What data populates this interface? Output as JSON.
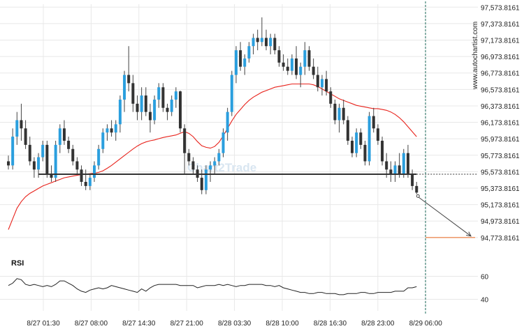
{
  "site_label": "www.autochartist.com",
  "watermark": "Chart2Trade",
  "colors": {
    "bull": "#2b9fde",
    "bear": "#333333",
    "ma": "#e8231c",
    "support": "#333333",
    "target": "#e8641c",
    "rsi": "#222222",
    "grid": "#e8e8e8",
    "wick": "#444444"
  },
  "chart_data": [
    {
      "type": "candlestick",
      "title": "",
      "y_ticks": [
        "97,573.8161",
        "97,373.8161",
        "97,173.8161",
        "96,973.8161",
        "96,773.8161",
        "96,573.8161",
        "96,373.8161",
        "96,173.8161",
        "95,973.8161",
        "95,773.8161",
        "95,573.8161",
        "95,373.8161",
        "95,173.8161",
        "94,973.8161",
        "94,773.8161"
      ],
      "x_ticks": [
        "8/27 01:30",
        "8/27 08:00",
        "8/27 14:30",
        "8/27 21:00",
        "8/28 03:30",
        "8/28 10:00",
        "8/28 16:30",
        "8/28 23:00",
        "8/29 06:00"
      ],
      "ylim": [
        94730,
        97610
      ],
      "candles": [
        [
          95700,
          95770,
          95600,
          95650
        ],
        [
          95650,
          96100,
          95600,
          96000
        ],
        [
          96000,
          96300,
          95900,
          96200
        ],
        [
          96200,
          96400,
          95950,
          96100
        ],
        [
          96100,
          96200,
          95850,
          95900
        ],
        [
          95900,
          96000,
          95650,
          95700
        ],
        [
          95700,
          95750,
          95500,
          95600
        ],
        [
          95600,
          95800,
          95500,
          95750
        ],
        [
          95750,
          95950,
          95700,
          95900
        ],
        [
          95900,
          95950,
          95500,
          95550
        ],
        [
          95550,
          95650,
          95450,
          95500
        ],
        [
          95500,
          95950,
          95450,
          95900
        ],
        [
          95900,
          96150,
          95800,
          96100
        ],
        [
          96100,
          96200,
          95900,
          95950
        ],
        [
          95950,
          96000,
          95800,
          95850
        ],
        [
          95850,
          95900,
          95650,
          95700
        ],
        [
          95700,
          95750,
          95550,
          95600
        ],
        [
          95600,
          95650,
          95400,
          95450
        ],
        [
          95450,
          95600,
          95350,
          95400
        ],
        [
          95400,
          95550,
          95350,
          95500
        ],
        [
          95500,
          95700,
          95450,
          95650
        ],
        [
          95650,
          95900,
          95600,
          95850
        ],
        [
          95850,
          96100,
          95800,
          96050
        ],
        [
          96050,
          96150,
          95950,
          96100
        ],
        [
          96100,
          96200,
          96000,
          96050
        ],
        [
          96050,
          96200,
          95950,
          96150
        ],
        [
          96150,
          96500,
          96050,
          96450
        ],
        [
          96450,
          96800,
          96300,
          96750
        ],
        [
          96750,
          97100,
          96550,
          96650
        ],
        [
          96650,
          96750,
          96300,
          96400
        ],
        [
          96400,
          96500,
          96200,
          96300
        ],
        [
          96300,
          96600,
          96200,
          96500
        ],
        [
          96500,
          96600,
          96250,
          96300
        ],
        [
          96300,
          96400,
          96050,
          96200
        ],
        [
          96200,
          96500,
          96150,
          96450
        ],
        [
          96450,
          96650,
          96350,
          96600
        ],
        [
          96600,
          96650,
          96300,
          96350
        ],
        [
          96350,
          96400,
          96200,
          96300
        ],
        [
          96300,
          96500,
          96250,
          96450
        ],
        [
          96450,
          96600,
          96350,
          96550
        ],
        [
          96550,
          96560,
          96050,
          96100
        ],
        [
          96100,
          96150,
          95550,
          95800
        ],
        [
          95800,
          95850,
          95650,
          95700
        ],
        [
          95700,
          95750,
          95550,
          95600
        ],
        [
          95600,
          95650,
          95450,
          95500
        ],
        [
          95500,
          95600,
          95300,
          95350
        ],
        [
          95350,
          95650,
          95300,
          95600
        ],
        [
          95600,
          95700,
          95450,
          95650
        ],
        [
          95650,
          95750,
          95550,
          95700
        ],
        [
          95700,
          95850,
          95650,
          95800
        ],
        [
          95800,
          96100,
          95750,
          96050
        ],
        [
          96050,
          96350,
          95950,
          96300
        ],
        [
          96300,
          96800,
          96250,
          96750
        ],
        [
          96750,
          97100,
          96650,
          97050
        ],
        [
          97050,
          97150,
          96800,
          96850
        ],
        [
          96850,
          97000,
          96750,
          96950
        ],
        [
          96950,
          97150,
          96900,
          97100
        ],
        [
          97100,
          97250,
          97000,
          97200
        ],
        [
          97200,
          97300,
          97050,
          97150
        ],
        [
          97150,
          97450,
          97100,
          97200
        ],
        [
          97200,
          97300,
          97050,
          97100
        ],
        [
          97100,
          97250,
          97000,
          97200
        ],
        [
          97200,
          97250,
          97000,
          97050
        ],
        [
          97050,
          97100,
          96850,
          96900
        ],
        [
          96900,
          97000,
          96800,
          96850
        ],
        [
          96850,
          96950,
          96750,
          96800
        ],
        [
          96800,
          97000,
          96750,
          96950
        ],
        [
          96950,
          97100,
          96700,
          96750
        ],
        [
          96750,
          96900,
          96600,
          96850
        ],
        [
          96850,
          97150,
          96750,
          97050
        ],
        [
          97050,
          97100,
          96800,
          96850
        ],
        [
          96850,
          96950,
          96700,
          96750
        ],
        [
          96750,
          96850,
          96550,
          96600
        ],
        [
          96600,
          96750,
          96500,
          96700
        ],
        [
          96700,
          96800,
          96500,
          96550
        ],
        [
          96550,
          96600,
          96350,
          96400
        ],
        [
          96400,
          96450,
          96150,
          96200
        ],
        [
          96200,
          96400,
          96050,
          96350
        ],
        [
          96350,
          96450,
          96150,
          96200
        ],
        [
          96200,
          96250,
          95900,
          95950
        ],
        [
          95950,
          96000,
          95750,
          95800
        ],
        [
          95800,
          96100,
          95750,
          96050
        ],
        [
          96050,
          96100,
          95850,
          95900
        ],
        [
          95900,
          95950,
          95650,
          95700
        ],
        [
          95700,
          96300,
          95650,
          96250
        ],
        [
          96250,
          96350,
          96050,
          96100
        ],
        [
          96100,
          96150,
          95900,
          95950
        ],
        [
          95950,
          96000,
          95650,
          95700
        ],
        [
          95700,
          95800,
          95500,
          95600
        ],
        [
          95600,
          95700,
          95450,
          95550
        ],
        [
          95550,
          95700,
          95450,
          95650
        ],
        [
          95650,
          95800,
          95500,
          95550
        ],
        [
          95550,
          95850,
          95500,
          95800
        ],
        [
          95800,
          95900,
          95500,
          95550
        ],
        [
          95550,
          95600,
          95350,
          95400
        ],
        [
          95400,
          95450,
          95300,
          95320
        ]
      ],
      "moving_average": [
        94870,
        95000,
        95130,
        95210,
        95270,
        95310,
        95340,
        95370,
        95400,
        95420,
        95440,
        95460,
        95480,
        95500,
        95510,
        95520,
        95530,
        95540,
        95545,
        95550,
        95555,
        95565,
        95585,
        95615,
        95650,
        95690,
        95730,
        95770,
        95810,
        95850,
        95885,
        95915,
        95935,
        95950,
        95960,
        95975,
        95990,
        96000,
        96010,
        96020,
        96040,
        96060,
        96040,
        96000,
        95940,
        95890,
        95870,
        95860,
        95880,
        95930,
        96010,
        96100,
        96190,
        96270,
        96330,
        96390,
        96440,
        96480,
        96510,
        96540,
        96560,
        96580,
        96600,
        96610,
        96620,
        96630,
        96640,
        96640,
        96640,
        96640,
        96640,
        96630,
        96610,
        96580,
        96550,
        96520,
        96490,
        96460,
        96440,
        96420,
        96400,
        96380,
        96370,
        96360,
        96350,
        96340,
        96340,
        96330,
        96320,
        96300,
        96270,
        96230,
        96180,
        96120,
        96060,
        96000
      ],
      "support_level": 95543,
      "target_level": 94773.8161,
      "rsi": {
        "label": "RSI",
        "ticks": [
          "60",
          "40"
        ],
        "ylim": [
          30,
          70
        ],
        "values": [
          52,
          54,
          58,
          57,
          53,
          52,
          53,
          52,
          51,
          52,
          51,
          53,
          56,
          56,
          54,
          52,
          49,
          47,
          46,
          48,
          49,
          50,
          49,
          50,
          52,
          51,
          50,
          49,
          48,
          47,
          46,
          49,
          47,
          50,
          52,
          53,
          53,
          53,
          53,
          53,
          52,
          52,
          52,
          52,
          50,
          51,
          52,
          52,
          52,
          53,
          52,
          53,
          52,
          51,
          52,
          52,
          53,
          53,
          53,
          53,
          52,
          52,
          51,
          52,
          50,
          49,
          48,
          47,
          46,
          46,
          45,
          45,
          46,
          46,
          45,
          45,
          45,
          44,
          44,
          45,
          45,
          45,
          46,
          46,
          45,
          45,
          46,
          46,
          46,
          46,
          47,
          47,
          47,
          50,
          50,
          51
        ]
      }
    }
  ]
}
